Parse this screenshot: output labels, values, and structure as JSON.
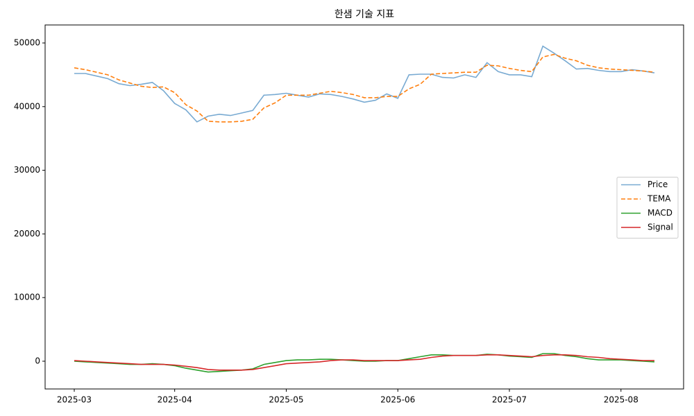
{
  "chart_data": {
    "type": "line",
    "title": "한샘 기술 지표",
    "categories": [
      "2025-03",
      null,
      null,
      null,
      null,
      null,
      null,
      null,
      null,
      "2025-04",
      null,
      null,
      null,
      null,
      null,
      null,
      null,
      null,
      null,
      "2025-05",
      null,
      null,
      null,
      null,
      null,
      null,
      null,
      null,
      null,
      "2025-06",
      null,
      null,
      null,
      null,
      null,
      null,
      null,
      null,
      null,
      "2025-07",
      null,
      null,
      null,
      null,
      null,
      null,
      null,
      null,
      null,
      "2025-08",
      null,
      null,
      null
    ],
    "series": [
      {
        "name": "Price",
        "color": "#78aad2",
        "linestyle": "solid",
        "values": [
          45200,
          45200,
          44800,
          44400,
          43600,
          43300,
          43500,
          43800,
          42500,
          40500,
          39500,
          37600,
          38500,
          38800,
          38600,
          39000,
          39400,
          41800,
          41900,
          42100,
          41800,
          41500,
          42000,
          41900,
          41600,
          41200,
          40700,
          41000,
          42000,
          41300,
          45000,
          45100,
          45100,
          44600,
          44500,
          45000,
          44600,
          46900,
          45500,
          45000,
          45000,
          44700,
          49500,
          48400,
          47200,
          45900,
          46000,
          45700,
          45500,
          45500,
          45800,
          45600,
          45300
        ]
      },
      {
        "name": "TEMA",
        "color": "#ff7f0e",
        "linestyle": "dashed",
        "values": [
          46100,
          45800,
          45400,
          45000,
          44200,
          43700,
          43200,
          43000,
          43100,
          42200,
          40300,
          39300,
          37700,
          37600,
          37600,
          37700,
          38000,
          39800,
          40600,
          41800,
          41800,
          41800,
          42100,
          42400,
          42200,
          41900,
          41400,
          41400,
          41600,
          41600,
          42800,
          43500,
          45100,
          45200,
          45300,
          45400,
          45400,
          46500,
          46400,
          46000,
          45700,
          45500,
          47800,
          48200,
          47600,
          47200,
          46500,
          46100,
          45900,
          45800,
          45700,
          45600,
          45400
        ]
      },
      {
        "name": "MACD",
        "color": "#2ca02c",
        "linestyle": "solid",
        "values": [
          0,
          -100,
          -200,
          -300,
          -400,
          -500,
          -500,
          -400,
          -500,
          -700,
          -1100,
          -1400,
          -1700,
          -1600,
          -1500,
          -1400,
          -1200,
          -500,
          -200,
          100,
          200,
          200,
          300,
          300,
          200,
          100,
          0,
          0,
          100,
          100,
          400,
          700,
          1000,
          1000,
          900,
          900,
          900,
          1100,
          1000,
          800,
          700,
          600,
          1200,
          1200,
          900,
          700,
          400,
          200,
          200,
          200,
          100,
          0,
          -100
        ]
      },
      {
        "name": "Signal",
        "color": "#d62728",
        "linestyle": "solid",
        "values": [
          100,
          0,
          -100,
          -200,
          -300,
          -400,
          -500,
          -500,
          -500,
          -600,
          -800,
          -1000,
          -1300,
          -1400,
          -1400,
          -1400,
          -1300,
          -1000,
          -700,
          -400,
          -300,
          -200,
          -100,
          100,
          200,
          200,
          100,
          100,
          100,
          100,
          200,
          300,
          600,
          800,
          900,
          900,
          900,
          1000,
          1000,
          900,
          800,
          700,
          900,
          1000,
          1000,
          900,
          700,
          600,
          400,
          300,
          200,
          100,
          100
        ]
      }
    ],
    "ylim": [
      -4360,
      52830
    ],
    "yticks": [
      0,
      10000,
      20000,
      30000,
      40000,
      50000
    ],
    "grid": false,
    "legend": "right"
  }
}
